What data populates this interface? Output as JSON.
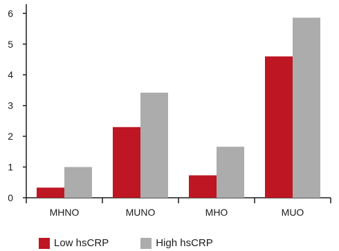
{
  "chart_data": {
    "type": "bar",
    "categories": [
      "MHNO",
      "MUNO",
      "MHO",
      "MUO"
    ],
    "series": [
      {
        "name": "Low hsCRP",
        "values": [
          0.33,
          2.3,
          0.73,
          4.6
        ],
        "color": "#be1622"
      },
      {
        "name": "High hsCRP",
        "values": [
          1.0,
          3.42,
          1.66,
          5.86
        ],
        "color": "#acacac"
      }
    ],
    "yticks": [
      0,
      1,
      2,
      3,
      4,
      5,
      6
    ],
    "ylim": [
      0,
      6.3
    ],
    "grid": false,
    "legend_position": "bottom-left"
  }
}
